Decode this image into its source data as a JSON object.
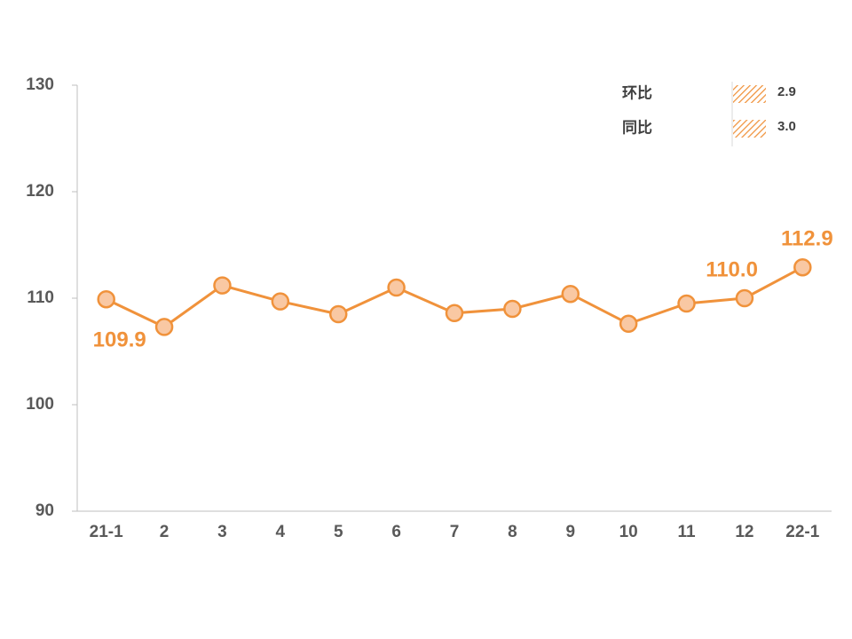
{
  "chart_data": {
    "type": "line",
    "categories": [
      "21-1",
      "2",
      "3",
      "4",
      "5",
      "6",
      "7",
      "8",
      "9",
      "10",
      "11",
      "12",
      "22-1"
    ],
    "series": [
      {
        "color": "#f0923b",
        "marker_fill": "#f9c8a3",
        "values": [
          109.9,
          107.3,
          111.2,
          109.7,
          108.5,
          111.0,
          108.6,
          109.0,
          110.4,
          107.6,
          109.5,
          110.0,
          112.9
        ],
        "value_labels": [
          "109.9",
          null,
          null,
          null,
          null,
          null,
          null,
          null,
          null,
          null,
          null,
          "110.0",
          "112.9"
        ]
      }
    ],
    "ylim": [
      90,
      130
    ],
    "yticks": [
      90,
      100,
      110,
      120,
      130
    ],
    "grid": false,
    "annotations": [
      {
        "label": "环比",
        "value": "2.9"
      },
      {
        "label": "同比",
        "value": "3.0"
      }
    ]
  }
}
